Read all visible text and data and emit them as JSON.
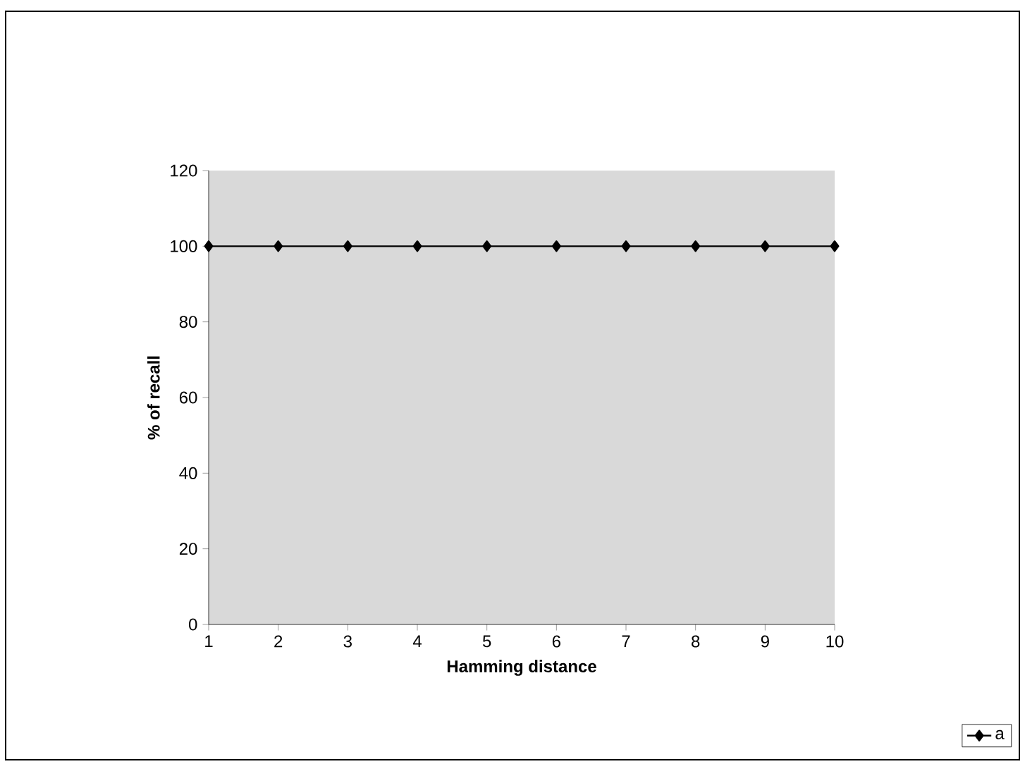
{
  "chart_data": {
    "type": "line",
    "xlabel": "Hamming distance",
    "ylabel": "% of recall",
    "x": [
      1,
      2,
      3,
      4,
      5,
      6,
      7,
      8,
      9,
      10
    ],
    "series": [
      {
        "name": "a",
        "color": "#000000",
        "values": [
          100,
          100,
          100,
          100,
          100,
          100,
          100,
          100,
          100,
          100
        ]
      }
    ],
    "xlim": [
      1,
      10
    ],
    "xticks": [
      1,
      2,
      3,
      4,
      5,
      6,
      7,
      8,
      9,
      10
    ],
    "ylim": [
      0,
      120
    ],
    "yticks": [
      0,
      20,
      40,
      60,
      80,
      100,
      120
    ],
    "grid": false,
    "legend": "bottom right",
    "marker": "diamond",
    "line_style": "solid"
  }
}
